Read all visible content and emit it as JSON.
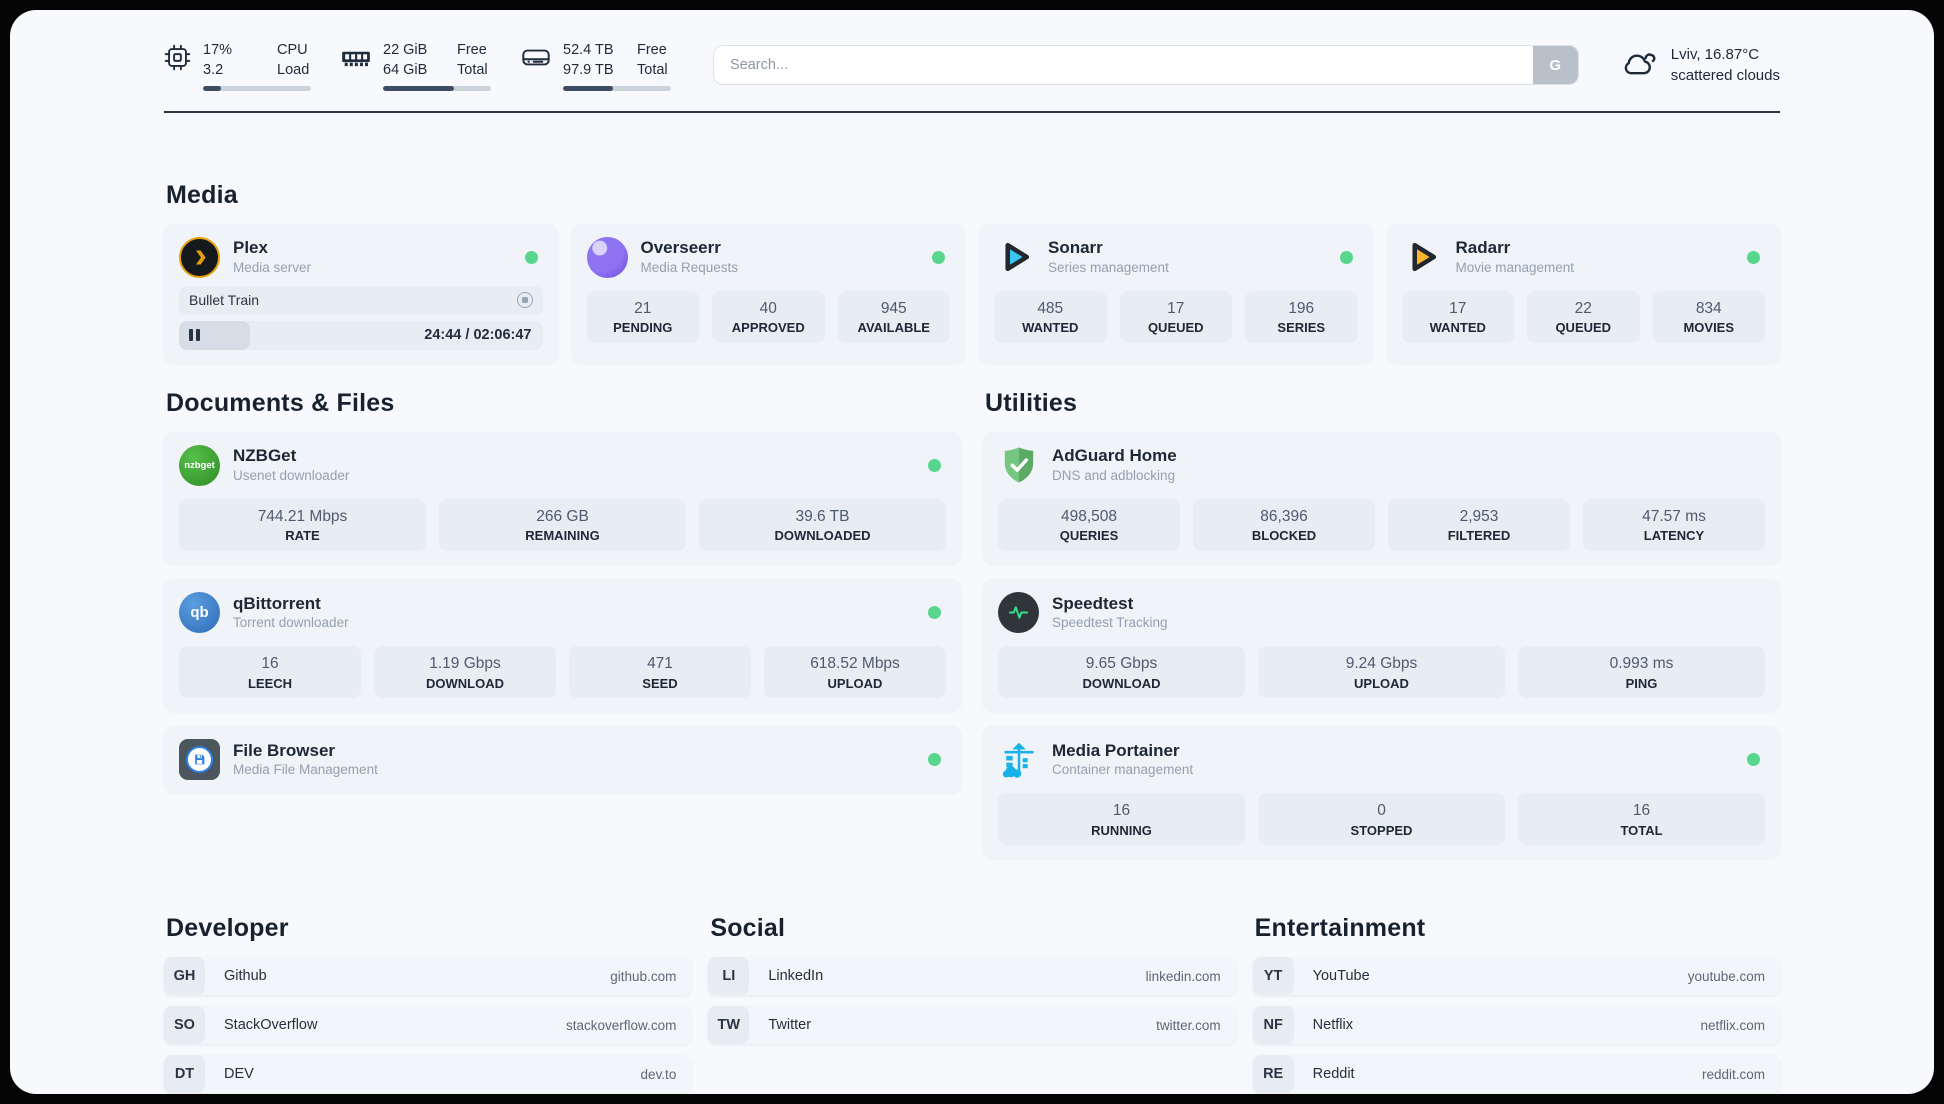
{
  "header": {
    "system_stats": [
      {
        "name": "cpu",
        "value_line1": "17%",
        "value_line2": "3.2",
        "label_line1": "CPU",
        "label_line2": "Load",
        "progress_pct": 17
      },
      {
        "name": "memory",
        "value_line1": "22 GiB",
        "value_line2": "64 GiB",
        "label_line1": "Free",
        "label_line2": "Total",
        "progress_pct": 66
      },
      {
        "name": "storage",
        "value_line1": "52.4 TB",
        "value_line2": "97.9 TB",
        "label_line1": "Free",
        "label_line2": "Total",
        "progress_pct": 46
      }
    ],
    "search": {
      "placeholder": "Search...",
      "button_label": "G"
    },
    "weather": {
      "location_temp": "Lviv, 16.87°C",
      "condition": "scattered clouds"
    }
  },
  "sections": {
    "media": {
      "title": "Media",
      "plex": {
        "name": "Plex",
        "subtitle": "Media server",
        "online": true,
        "now_playing": "Bullet Train",
        "time_display": "24:44 / 02:06:47",
        "progress_pct": 19.5
      },
      "apps": [
        {
          "name": "Overseerr",
          "subtitle": "Media Requests",
          "online": true,
          "stats": [
            {
              "value": "21",
              "label": "PENDING"
            },
            {
              "value": "40",
              "label": "APPROVED"
            },
            {
              "value": "945",
              "label": "AVAILABLE"
            }
          ]
        },
        {
          "name": "Sonarr",
          "subtitle": "Series management",
          "online": true,
          "stats": [
            {
              "value": "485",
              "label": "WANTED"
            },
            {
              "value": "17",
              "label": "QUEUED"
            },
            {
              "value": "196",
              "label": "SERIES"
            }
          ]
        },
        {
          "name": "Radarr",
          "subtitle": "Movie management",
          "online": true,
          "stats": [
            {
              "value": "17",
              "label": "WANTED"
            },
            {
              "value": "22",
              "label": "QUEUED"
            },
            {
              "value": "834",
              "label": "MOVIES"
            }
          ]
        }
      ]
    },
    "documents": {
      "title": "Documents & Files",
      "apps": [
        {
          "name": "NZBGet",
          "subtitle": "Usenet downloader",
          "icon_text": "nzbget",
          "online": true,
          "stats": [
            {
              "value": "744.21 Mbps",
              "label": "RATE"
            },
            {
              "value": "266 GB",
              "label": "REMAINING"
            },
            {
              "value": "39.6 TB",
              "label": "DOWNLOADED"
            }
          ]
        },
        {
          "name": "qBittorrent",
          "subtitle": "Torrent downloader",
          "icon_text": "qb",
          "online": true,
          "stats": [
            {
              "value": "16",
              "label": "LEECH"
            },
            {
              "value": "1.19 Gbps",
              "label": "DOWNLOAD"
            },
            {
              "value": "471",
              "label": "SEED"
            },
            {
              "value": "618.52 Mbps",
              "label": "UPLOAD"
            }
          ]
        },
        {
          "name": "File Browser",
          "subtitle": "Media File Management",
          "online": true,
          "stats": []
        }
      ]
    },
    "utilities": {
      "title": "Utilities",
      "apps": [
        {
          "name": "AdGuard Home",
          "subtitle": "DNS and adblocking",
          "stats": [
            {
              "value": "498,508",
              "label": "QUERIES"
            },
            {
              "value": "86,396",
              "label": "BLOCKED"
            },
            {
              "value": "2,953",
              "label": "FILTERED"
            },
            {
              "value": "47.57 ms",
              "label": "LATENCY"
            }
          ]
        },
        {
          "name": "Speedtest",
          "subtitle": "Speedtest Tracking",
          "stats": [
            {
              "value": "9.65 Gbps",
              "label": "DOWNLOAD"
            },
            {
              "value": "9.24 Gbps",
              "label": "UPLOAD"
            },
            {
              "value": "0.993 ms",
              "label": "PING"
            }
          ]
        },
        {
          "name": "Media Portainer",
          "subtitle": "Container management",
          "online": true,
          "stats": [
            {
              "value": "16",
              "label": "RUNNING"
            },
            {
              "value": "0",
              "label": "STOPPED"
            },
            {
              "value": "16",
              "label": "TOTAL"
            }
          ]
        }
      ]
    },
    "bookmarks": [
      {
        "title": "Developer",
        "items": [
          {
            "abbr": "GH",
            "name": "Github",
            "url": "github.com"
          },
          {
            "abbr": "SO",
            "name": "StackOverflow",
            "url": "stackoverflow.com"
          },
          {
            "abbr": "DT",
            "name": "DEV",
            "url": "dev.to"
          }
        ]
      },
      {
        "title": "Social",
        "items": [
          {
            "abbr": "LI",
            "name": "LinkedIn",
            "url": "linkedin.com"
          },
          {
            "abbr": "TW",
            "name": "Twitter",
            "url": "twitter.com"
          }
        ]
      },
      {
        "title": "Entertainment",
        "items": [
          {
            "abbr": "YT",
            "name": "YouTube",
            "url": "youtube.com"
          },
          {
            "abbr": "NF",
            "name": "Netflix",
            "url": "netflix.com"
          },
          {
            "abbr": "RE",
            "name": "Reddit",
            "url": "reddit.com"
          }
        ]
      }
    ]
  },
  "colors": {
    "status_online": "#58d68d",
    "plex_accent": "#e5a00d",
    "divider": "#2c3642"
  }
}
